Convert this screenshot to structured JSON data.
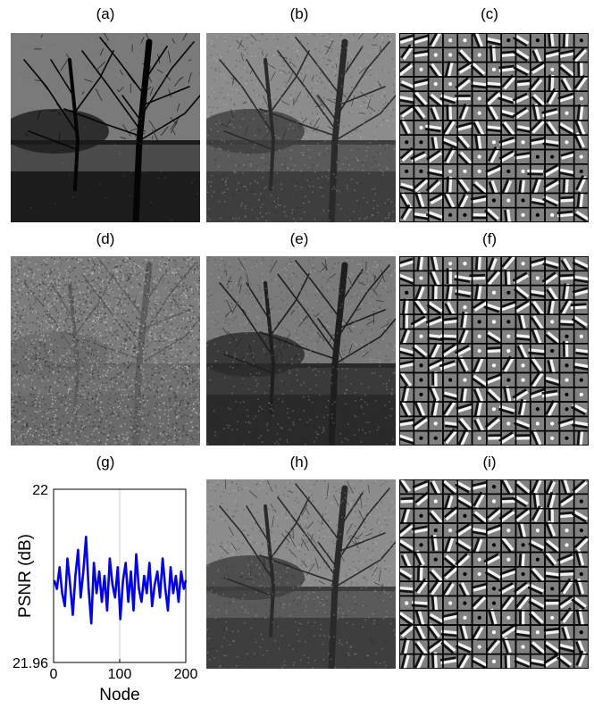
{
  "panels": [
    {
      "label": "(a)",
      "kind": "photo",
      "variant": "clean"
    },
    {
      "label": "(b)",
      "kind": "photo",
      "variant": "denoised"
    },
    {
      "label": "(c)",
      "kind": "dictionary"
    },
    {
      "label": "(d)",
      "kind": "photo",
      "variant": "noisy"
    },
    {
      "label": "(e)",
      "kind": "photo",
      "variant": "denoised-dark"
    },
    {
      "label": "(f)",
      "kind": "dictionary"
    },
    {
      "label": "(g)",
      "kind": "chart"
    },
    {
      "label": "(h)",
      "kind": "photo",
      "variant": "denoised"
    },
    {
      "label": "(i)",
      "kind": "dictionary"
    }
  ],
  "chart_data": {
    "type": "line",
    "title": "",
    "xlabel": "Node",
    "ylabel": "PSNR (dB)",
    "xlim": [
      0,
      200
    ],
    "ylim": [
      21.96,
      22
    ],
    "xticks": [
      "0",
      "100",
      "200"
    ],
    "yticks": [
      "21.96",
      "22"
    ],
    "grid": "vertical line at x=100",
    "series": [
      {
        "color": "#0000ff",
        "x": [
          1,
          5,
          9,
          13,
          17,
          21,
          25,
          29,
          33,
          37,
          41,
          45,
          49,
          53,
          57,
          61,
          65,
          69,
          73,
          77,
          81,
          85,
          89,
          93,
          97,
          101,
          105,
          109,
          113,
          117,
          121,
          125,
          129,
          133,
          137,
          141,
          145,
          149,
          153,
          157,
          161,
          165,
          169,
          173,
          177,
          181,
          185,
          189,
          193,
          197,
          200
        ],
        "y": [
          21.979,
          21.977,
          21.982,
          21.976,
          21.973,
          21.984,
          21.978,
          21.971,
          21.98,
          21.986,
          21.975,
          21.981,
          21.989,
          21.977,
          21.969,
          21.983,
          21.976,
          21.981,
          21.974,
          21.98,
          21.972,
          21.984,
          21.978,
          21.975,
          21.982,
          21.97,
          21.979,
          21.983,
          21.974,
          21.981,
          21.972,
          21.985,
          21.977,
          21.974,
          21.98,
          21.976,
          21.983,
          21.973,
          21.978,
          21.981,
          21.975,
          21.984,
          21.977,
          21.972,
          21.982,
          21.976,
          21.98,
          21.974,
          21.981,
          21.977,
          21.979
        ]
      }
    ]
  }
}
